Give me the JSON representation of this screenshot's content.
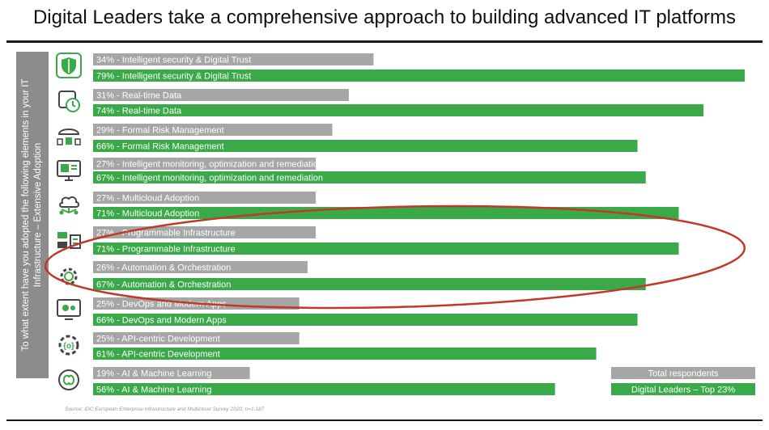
{
  "title": "Digital Leaders take a comprehensive approach to building advanced IT platforms",
  "yaxis_label": "To what extent have you adopted the following elements in your IT Infrastructure – Extensive Adoption",
  "source": "Source: IDC European Enterprise Infrastructure and Multicloud Survey 2020, n=1,187",
  "colors": {
    "total": "#a6a6a6",
    "leaders": "#3aaa48",
    "highlight": "#c0392b",
    "icon": "#3aaa48"
  },
  "icons": [
    "shield-icon",
    "clock-chip-icon",
    "umbrella-lock-icon",
    "monitor-icon",
    "cloud-network-icon",
    "infrastructure-icon",
    "gear-automation-icon",
    "devops-screen-icon",
    "api-gear-icon",
    "ai-brain-icon"
  ],
  "chart_data": {
    "type": "bar",
    "orientation": "horizontal",
    "title": "Digital Leaders take a comprehensive approach to building advanced IT platforms",
    "ylabel": "To what extent have you adopted the following elements in your IT Infrastructure – Extensive Adoption",
    "categories": [
      "Intelligent security & Digital Trust",
      "Real-time Data",
      "Formal Risk Management",
      "Intelligent monitoring, optimization and remediation",
      "Multicloud Adoption",
      "Programmable Infrastructure",
      "Automation & Orchestration",
      "DevOps and Modern Apps",
      "API-centric Development",
      "AI & Machine Learning"
    ],
    "series": [
      {
        "name": "Total respondents",
        "values": [
          34,
          31,
          29,
          27,
          27,
          27,
          26,
          25,
          25,
          19
        ],
        "labels": [
          "34% - Intelligent security & Digital Trust",
          "31% - Real-time Data",
          "29% - Formal Risk Management",
          "27% - Intelligent monitoring, optimization and remediation",
          "27% - Multicloud Adoption",
          "27% - Programmable Infrastructure",
          "26% - Automation & Orchestration",
          "25% - DevOps and Modern Apps",
          "25% - API-centric Development",
          "19% - AI & Machine Learning"
        ]
      },
      {
        "name": "Digital Leaders – Top 23%",
        "values": [
          79,
          74,
          66,
          67,
          71,
          71,
          67,
          66,
          61,
          56
        ],
        "labels": [
          "79% - Intelligent security & Digital Trust",
          "74% - Real-time Data",
          "66% - Formal Risk Management",
          "67% - Intelligent monitoring, optimization and remediation",
          "71% - Multicloud Adoption",
          "71% - Programmable Infrastructure",
          "67% - Automation & Orchestration",
          "66% - DevOps and Modern Apps",
          "61% - API-centric Development",
          "56% - AI & Machine Learning"
        ]
      }
    ],
    "xlim": [
      0,
      79
    ],
    "legend": "bottom-right",
    "highlighted": [
      "Programmable Infrastructure",
      "Automation & Orchestration"
    ]
  }
}
